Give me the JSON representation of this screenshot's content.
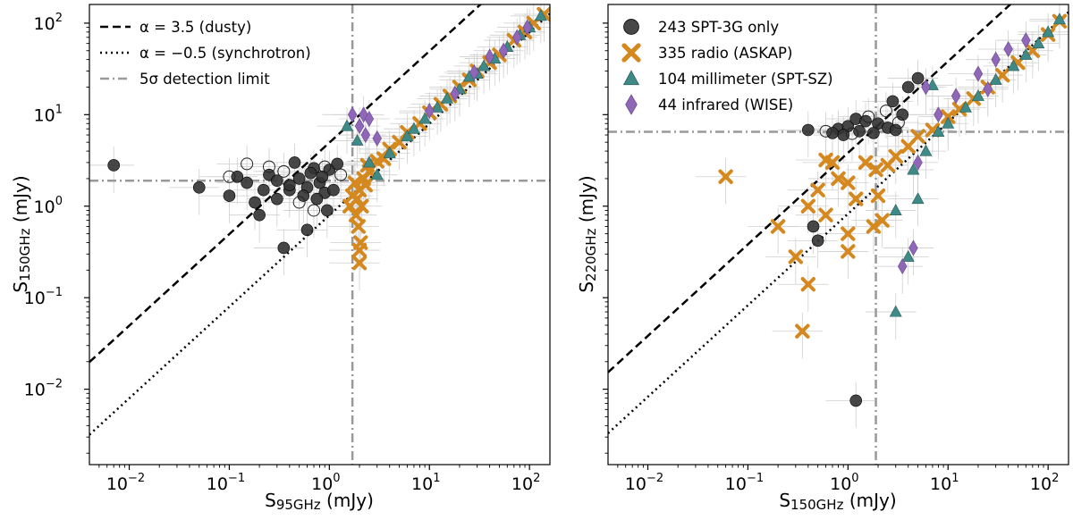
{
  "colors": {
    "dusty": "#000000",
    "synchrotron": "#000000",
    "limit": "#999999",
    "spt3g": "#333333",
    "radio": "#D4881E",
    "millimeter": "#3F8A86",
    "infrared": "#8F66B8",
    "errorbar": "#cfcfcf"
  },
  "chart_data": [
    {
      "type": "scatter",
      "xscale": "log",
      "yscale": "log",
      "xlim": [
        0.004,
        160
      ],
      "ylim": [
        0.0015,
        160
      ],
      "xlabel": {
        "main": "S",
        "sub": "95GHz",
        "unit": " (mJy)"
      },
      "ylabel": {
        "main": "S",
        "sub": "150GHz",
        "unit": " (mJy)"
      },
      "xticks": [
        {
          "value": 0.01,
          "base": "10",
          "exp": "−2"
        },
        {
          "value": 0.1,
          "base": "10",
          "exp": "−1"
        },
        {
          "value": 1,
          "base": "10",
          "exp": "0"
        },
        {
          "value": 10,
          "base": "10",
          "exp": "1"
        },
        {
          "value": 100,
          "base": "10",
          "exp": "2"
        }
      ],
      "yticks": [
        {
          "value": 0.01,
          "base": "10",
          "exp": "−2"
        },
        {
          "value": 0.1,
          "base": "10",
          "exp": "−1"
        },
        {
          "value": 1,
          "base": "10",
          "exp": "0"
        },
        {
          "value": 10,
          "base": "10",
          "exp": "1"
        },
        {
          "value": 100,
          "base": "10",
          "exp": "2"
        }
      ],
      "lines": [
        {
          "name": "dusty",
          "alpha": 3.5,
          "ratio": 1.579,
          "style": "dashed"
        },
        {
          "name": "synchrotron",
          "alpha": -0.5,
          "ratio": 1.579,
          "style": "dotted"
        }
      ],
      "detection_limit": {
        "x": 1.7,
        "y": 1.9
      },
      "legend": {
        "position": "top-left",
        "entries": [
          {
            "kind": "dashed",
            "label": "α = 3.5 (dusty)"
          },
          {
            "kind": "dotted",
            "label": "α = −0.5 (synchrotron)"
          },
          {
            "kind": "dashdot",
            "label": "5σ detection limit"
          }
        ]
      },
      "series": [
        {
          "name": "SPT-3G only",
          "marker": "circle",
          "points": [
            [
              0.007,
              2.8
            ],
            [
              0.1,
              1.3
            ],
            [
              0.2,
              0.8
            ],
            [
              0.15,
              1.8
            ],
            [
              0.3,
              1.2
            ],
            [
              0.4,
              1.5
            ],
            [
              0.5,
              2.0
            ],
            [
              0.6,
              1.6
            ],
            [
              0.8,
              1.8
            ],
            [
              1.0,
              2.5
            ],
            [
              0.7,
              2.6
            ],
            [
              0.9,
              1.4
            ],
            [
              0.35,
              0.35
            ],
            [
              0.6,
              0.55
            ],
            [
              0.25,
              2.2
            ],
            [
              0.45,
              3.0
            ],
            [
              1.2,
              2.9
            ],
            [
              0.18,
              1.1
            ],
            [
              0.3,
              1.9
            ],
            [
              0.55,
              1.3
            ],
            [
              0.85,
              2.1
            ],
            [
              0.4,
              1.7
            ],
            [
              1.1,
              1.5
            ],
            [
              0.22,
              1.5
            ],
            [
              0.65,
              2.3
            ],
            [
              0.05,
              1.6
            ],
            [
              0.12,
              2.1
            ],
            [
              0.75,
              1.2
            ],
            [
              0.95,
              0.9
            ]
          ]
        },
        {
          "name": "SPT-3G only (open)",
          "marker": "circle-open",
          "points": [
            [
              0.15,
              2.9
            ],
            [
              0.35,
              2.4
            ],
            [
              0.1,
              2.1
            ],
            [
              0.9,
              2.7
            ],
            [
              1.3,
              2.2
            ],
            [
              0.5,
              1.1
            ],
            [
              0.25,
              2.7
            ],
            [
              0.7,
              0.9
            ]
          ]
        },
        {
          "name": "radio (ASKAP)",
          "marker": "x",
          "points": [
            [
              1.8,
              1.8
            ],
            [
              2.0,
              1.5
            ],
            [
              1.9,
              1.2
            ],
            [
              2.1,
              1.0
            ],
            [
              1.85,
              0.8
            ],
            [
              1.95,
              0.6
            ],
            [
              2.05,
              0.4
            ],
            [
              2.2,
              2.0
            ],
            [
              2.5,
              2.4
            ],
            [
              3.0,
              3.1
            ],
            [
              4,
              4.2
            ],
            [
              5,
              5
            ],
            [
              6,
              6.4
            ],
            [
              8,
              8
            ],
            [
              10,
              10.5
            ],
            [
              13,
              13
            ],
            [
              16,
              16
            ],
            [
              20,
              20
            ],
            [
              25,
              24
            ],
            [
              30,
              30
            ],
            [
              40,
              37
            ],
            [
              50,
              45
            ],
            [
              70,
              65
            ],
            [
              90,
              80
            ],
            [
              110,
              100
            ],
            [
              140,
              125
            ],
            [
              2.3,
              1.7
            ],
            [
              1.7,
              1.3
            ],
            [
              2.4,
              2.8
            ],
            [
              3.5,
              3.3
            ],
            [
              1.6,
              1.0
            ],
            [
              2.0,
              0.33
            ],
            [
              2.0,
              0.24
            ]
          ]
        },
        {
          "name": "millimeter (SPT-SZ)",
          "marker": "triangle",
          "points": [
            [
              1.5,
              7.5
            ],
            [
              2.5,
              3.0
            ],
            [
              4,
              3.8
            ],
            [
              6,
              5.8
            ],
            [
              9,
              9
            ],
            [
              12,
              12
            ],
            [
              15,
              15
            ],
            [
              20,
              19
            ],
            [
              30,
              28
            ],
            [
              45,
              41
            ],
            [
              60,
              55
            ],
            [
              80,
              74
            ],
            [
              100,
              90
            ],
            [
              130,
              120
            ],
            [
              25,
              26
            ],
            [
              35,
              34
            ],
            [
              1.9,
              5.2
            ],
            [
              3,
              2.2
            ],
            [
              7,
              7
            ]
          ]
        },
        {
          "name": "infrared (WISE)",
          "marker": "diamond",
          "points": [
            [
              2,
              7.5
            ],
            [
              2.2,
              10
            ],
            [
              2.5,
              9
            ],
            [
              1.7,
              10
            ],
            [
              3,
              5.5
            ],
            [
              10,
              11
            ],
            [
              18,
              17
            ],
            [
              28,
              29
            ],
            [
              40,
              43
            ],
            [
              55,
              50
            ],
            [
              75,
              70
            ],
            [
              95,
              90
            ],
            [
              2.3,
              6
            ]
          ]
        }
      ]
    },
    {
      "type": "scatter",
      "xscale": "log",
      "yscale": "log",
      "xlim": [
        0.004,
        160
      ],
      "ylim": [
        0.0015,
        160
      ],
      "xlabel": {
        "main": "S",
        "sub": "150GHz",
        "unit": " (mJy)"
      },
      "ylabel": {
        "main": "S",
        "sub": "220GHz",
        "unit": " (mJy)"
      },
      "xticks": [
        {
          "value": 0.01,
          "base": "10",
          "exp": "−2"
        },
        {
          "value": 0.1,
          "base": "10",
          "exp": "−1"
        },
        {
          "value": 1,
          "base": "10",
          "exp": "0"
        },
        {
          "value": 10,
          "base": "10",
          "exp": "1"
        },
        {
          "value": 100,
          "base": "10",
          "exp": "2"
        }
      ],
      "yticks": [],
      "lines": [
        {
          "name": "dusty",
          "alpha": 3.5,
          "ratio": 1.467,
          "style": "dashed"
        },
        {
          "name": "synchrotron",
          "alpha": -0.5,
          "ratio": 1.467,
          "style": "dotted"
        }
      ],
      "detection_limit": {
        "x": 1.9,
        "y": 6.5
      },
      "legend": {
        "position": "top-left",
        "entries": [
          {
            "kind": "circle",
            "label": "243 SPT-3G only"
          },
          {
            "kind": "x",
            "label": "335 radio (ASKAP)"
          },
          {
            "kind": "triangle",
            "label": "104 millimeter (SPT-SZ)"
          },
          {
            "kind": "diamond",
            "label": "44 infrared (WISE)"
          }
        ]
      },
      "series": [
        {
          "name": "SPT-3G only",
          "marker": "circle",
          "points": [
            [
              0.4,
              6.8
            ],
            [
              0.8,
              7.0
            ],
            [
              1.0,
              7.5
            ],
            [
              1.2,
              9.0
            ],
            [
              1.5,
              8.5
            ],
            [
              2.0,
              8.0
            ],
            [
              2.5,
              7.2
            ],
            [
              3.0,
              6.8
            ],
            [
              3.5,
              10
            ],
            [
              1.8,
              6.3
            ],
            [
              0.9,
              6.0
            ],
            [
              4,
              20
            ],
            [
              5,
              25
            ],
            [
              0.45,
              0.6
            ],
            [
              0.5,
              0.42
            ],
            [
              1.2,
              0.0075
            ],
            [
              2.8,
              14
            ],
            [
              1.3,
              6.6
            ],
            [
              0.7,
              6.3
            ]
          ]
        },
        {
          "name": "SPT-3G only (open)",
          "marker": "circle-open",
          "points": [
            [
              0.6,
              6.6
            ],
            [
              1.6,
              9.5
            ],
            [
              2.4,
              11
            ],
            [
              3.2,
              8.2
            ],
            [
              1.1,
              6.2
            ]
          ]
        },
        {
          "name": "radio (ASKAP)",
          "marker": "x",
          "points": [
            [
              0.06,
              2.1
            ],
            [
              0.4,
              1.0
            ],
            [
              0.6,
              0.8
            ],
            [
              1.0,
              0.32
            ],
            [
              0.3,
              0.28
            ],
            [
              0.4,
              0.14
            ],
            [
              0.35,
              0.043
            ],
            [
              0.5,
              1.5
            ],
            [
              0.8,
              2.0
            ],
            [
              1.0,
              1.8
            ],
            [
              1.5,
              3.0
            ],
            [
              1.9,
              2.5
            ],
            [
              2.0,
              1.3
            ],
            [
              1.8,
              0.6
            ],
            [
              2.2,
              0.7
            ],
            [
              3,
              3.5
            ],
            [
              4,
              4.5
            ],
            [
              5,
              5.8
            ],
            [
              7,
              6.8
            ],
            [
              10,
              9.5
            ],
            [
              13,
              11.5
            ],
            [
              18,
              15
            ],
            [
              25,
              20
            ],
            [
              35,
              27
            ],
            [
              50,
              37
            ],
            [
              70,
              50
            ],
            [
              100,
              75
            ],
            [
              130,
              105
            ],
            [
              0.2,
              0.6
            ],
            [
              0.7,
              3.0
            ],
            [
              1.2,
              1.2
            ],
            [
              1.0,
              0.5
            ],
            [
              0.6,
              3.2
            ],
            [
              2.5,
              2.8
            ]
          ]
        },
        {
          "name": "millimeter (SPT-SZ)",
          "marker": "triangle",
          "points": [
            [
              4,
              0.28
            ],
            [
              6,
              4
            ],
            [
              5,
              1.2
            ],
            [
              3,
              0.9
            ],
            [
              8,
              6.5
            ],
            [
              10,
              8
            ],
            [
              15,
              12
            ],
            [
              20,
              16
            ],
            [
              30,
              24
            ],
            [
              45,
              34
            ],
            [
              60,
              45
            ],
            [
              80,
              60
            ],
            [
              100,
              80
            ],
            [
              130,
              110
            ],
            [
              7,
              21
            ],
            [
              3,
              0.07
            ],
            [
              4.5,
              2.5
            ]
          ]
        },
        {
          "name": "infrared (WISE)",
          "marker": "diamond",
          "points": [
            [
              5,
              3.0
            ],
            [
              4.5,
              0.35
            ],
            [
              3.5,
              0.22
            ],
            [
              6,
              20
            ],
            [
              8,
              10
            ],
            [
              12,
              16
            ],
            [
              20,
              28
            ],
            [
              30,
              40
            ],
            [
              40,
              52
            ],
            [
              60,
              65
            ],
            [
              25,
              19
            ]
          ]
        }
      ]
    }
  ]
}
